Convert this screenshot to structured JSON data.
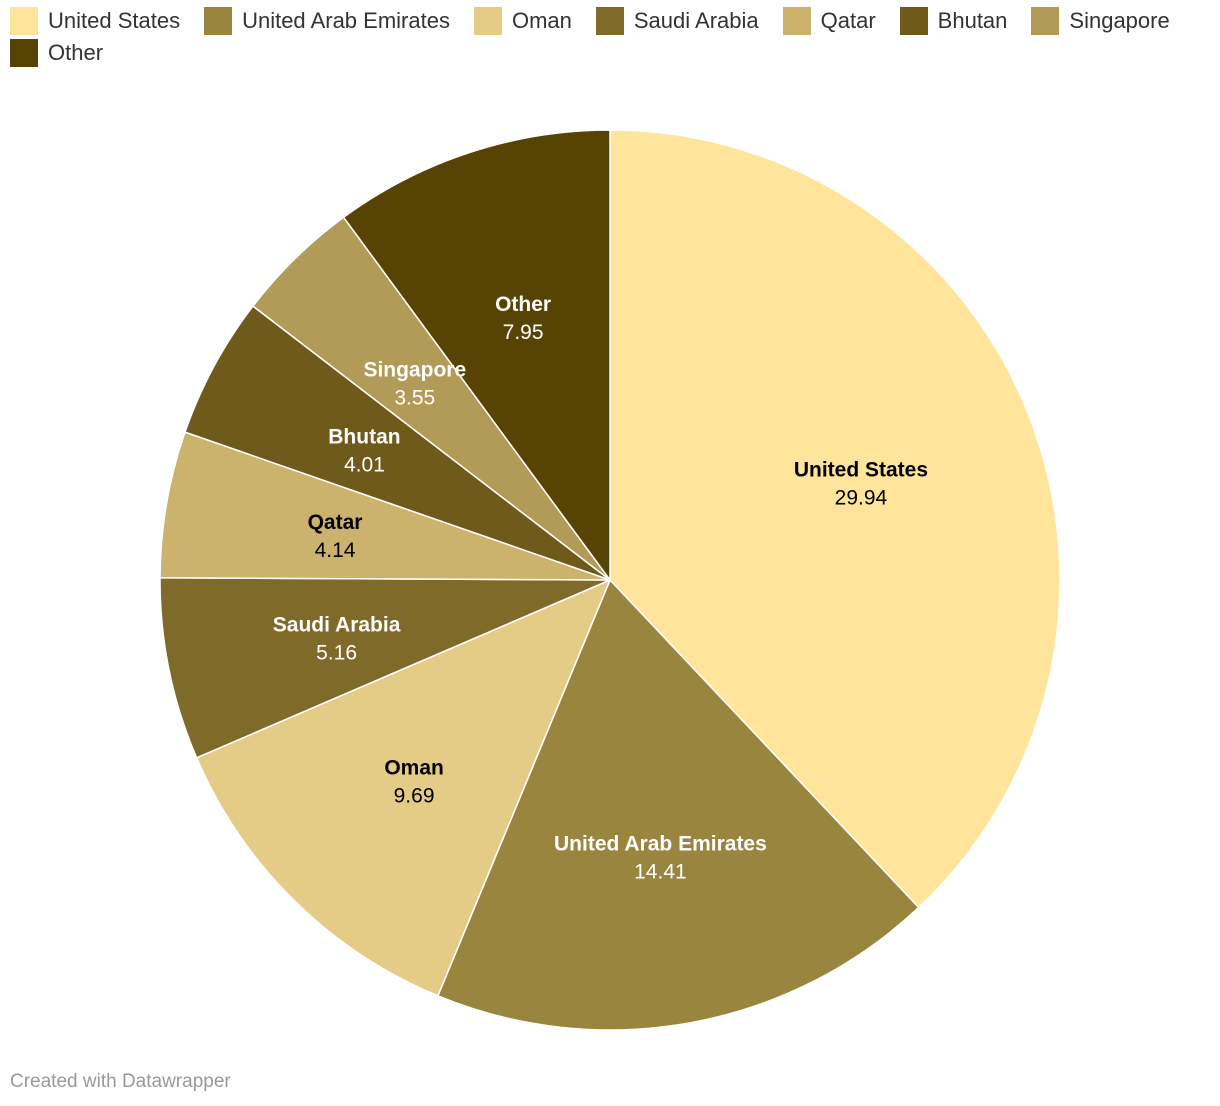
{
  "chart_data": {
    "type": "pie",
    "categories": [
      "United States",
      "United Arab Emirates",
      "Oman",
      "Saudi Arabia",
      "Qatar",
      "Bhutan",
      "Singapore",
      "Other"
    ],
    "values": [
      29.94,
      14.41,
      9.69,
      5.16,
      4.14,
      4.01,
      3.55,
      7.95
    ],
    "colors": [
      "#fee59b",
      "#9a853f",
      "#e4cb86",
      "#7f6a2a",
      "#cbb26d",
      "#6f5a1b",
      "#b29b58",
      "#574405"
    ],
    "label_colors": [
      "#000000",
      "#ffffff",
      "#000000",
      "#ffffff",
      "#000000",
      "#ffffff",
      "#ffffff",
      "#ffffff"
    ],
    "legend_position": "top-left"
  },
  "footer": {
    "credit": "Created with Datawrapper"
  }
}
